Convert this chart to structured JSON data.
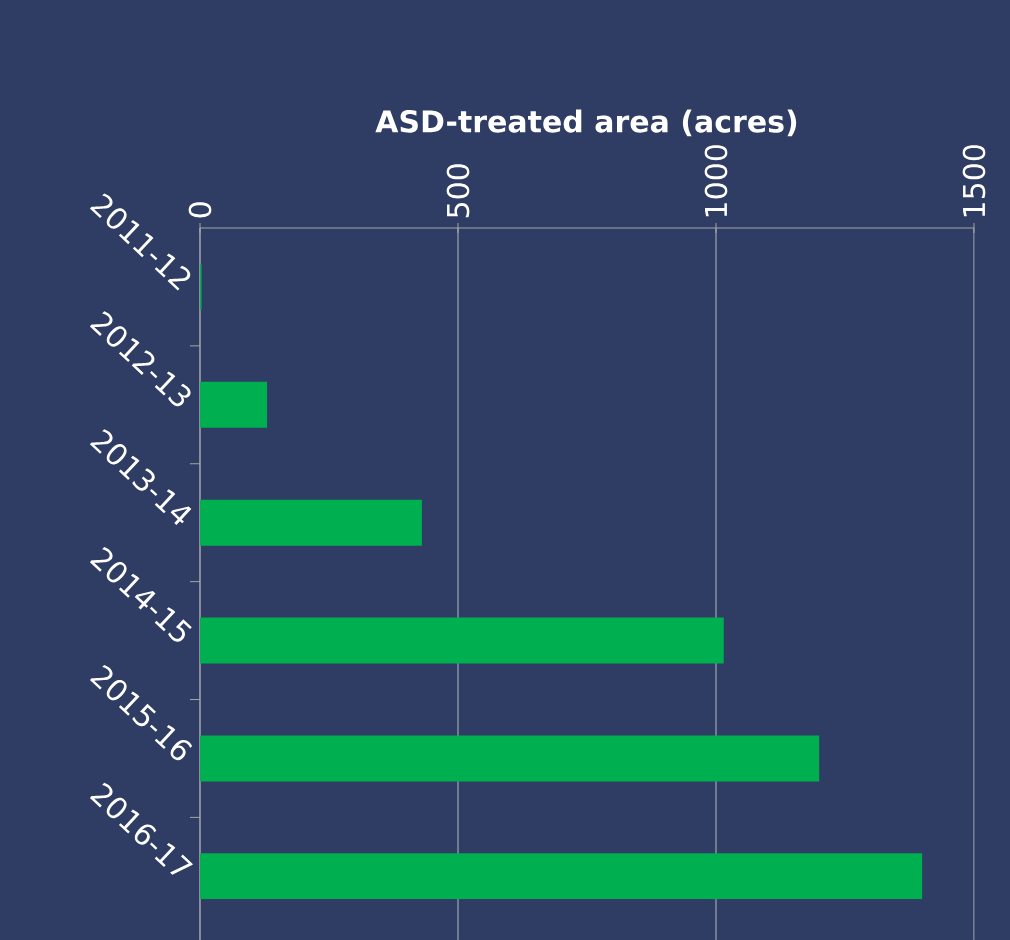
{
  "chart_data": {
    "type": "bar",
    "orientation": "horizontal",
    "xlabel": "ASD-treated area (acres)",
    "categories": [
      "2011-12",
      "2012-13",
      "2013-14",
      "2014-15",
      "2015-16",
      "2016-17"
    ],
    "values": [
      3,
      130,
      430,
      1015,
      1200,
      1400
    ],
    "color": "#00b050",
    "xlim": [
      0,
      1500
    ],
    "xticks": [
      0,
      500,
      1000,
      1500
    ],
    "grid": "x"
  }
}
